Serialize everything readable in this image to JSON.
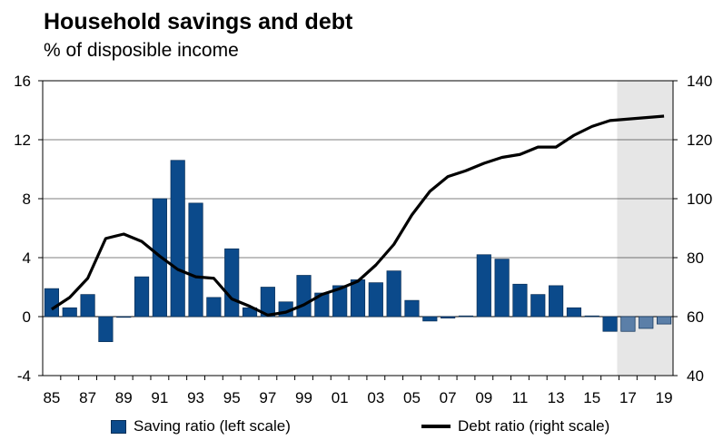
{
  "title": "Household savings and debt",
  "subtitle": "% of disposible income",
  "colors": {
    "bar": "#0b4a8b",
    "bar_forecast": "#5b7fa8",
    "bar_edge": "#0a2f57",
    "line": "#000000",
    "forecast_shade": "#e6e6e6"
  },
  "chart_data": {
    "type": "bar",
    "categories": [
      "85",
      "86",
      "87",
      "88",
      "89",
      "90",
      "91",
      "92",
      "93",
      "94",
      "95",
      "96",
      "97",
      "98",
      "99",
      "00",
      "01",
      "02",
      "03",
      "04",
      "05",
      "06",
      "07",
      "08",
      "09",
      "10",
      "11",
      "12",
      "13",
      "14",
      "15",
      "16",
      "17",
      "18",
      "19"
    ],
    "x_tick_labels": [
      "85",
      "87",
      "89",
      "91",
      "93",
      "95",
      "97",
      "99",
      "01",
      "03",
      "05",
      "07",
      "09",
      "11",
      "13",
      "15",
      "17",
      "19"
    ],
    "series": [
      {
        "name": "Saving ratio (left scale)",
        "type": "bar",
        "axis": "left",
        "values": [
          1.9,
          0.6,
          1.5,
          -1.7,
          0.0,
          2.7,
          8.0,
          10.6,
          7.7,
          1.3,
          4.6,
          0.6,
          2.0,
          1.0,
          2.8,
          1.6,
          2.1,
          2.5,
          2.3,
          3.1,
          1.1,
          -0.3,
          -0.1,
          0.05,
          4.2,
          3.9,
          2.2,
          1.5,
          2.1,
          0.6,
          0.05,
          -1.0,
          -1.0,
          -0.8,
          -0.5
        ]
      },
      {
        "name": "Debt ratio (right scale)",
        "type": "line",
        "axis": "right",
        "values": [
          62.5,
          66.5,
          73,
          86.5,
          88,
          85.5,
          80.5,
          76,
          73.5,
          73,
          66,
          63.5,
          60.5,
          61.5,
          64,
          67.5,
          69.5,
          72,
          77.5,
          84.5,
          94.5,
          102.5,
          107.5,
          109.5,
          112,
          114,
          115,
          117.5,
          117.5,
          121.5,
          124.5,
          126.5,
          127,
          127.5,
          128
        ]
      }
    ],
    "forecast_from": "17",
    "y_left": {
      "min": -4,
      "max": 16,
      "ticks": [
        -4,
        0,
        4,
        8,
        12,
        16
      ]
    },
    "y_right": {
      "min": 40,
      "max": 140,
      "ticks": [
        40,
        60,
        80,
        100,
        120,
        140
      ]
    },
    "grid": true,
    "legend_position": "bottom"
  },
  "legend": {
    "bar_label": "Saving ratio (left scale)",
    "line_label": "Debt ratio (right scale)"
  }
}
